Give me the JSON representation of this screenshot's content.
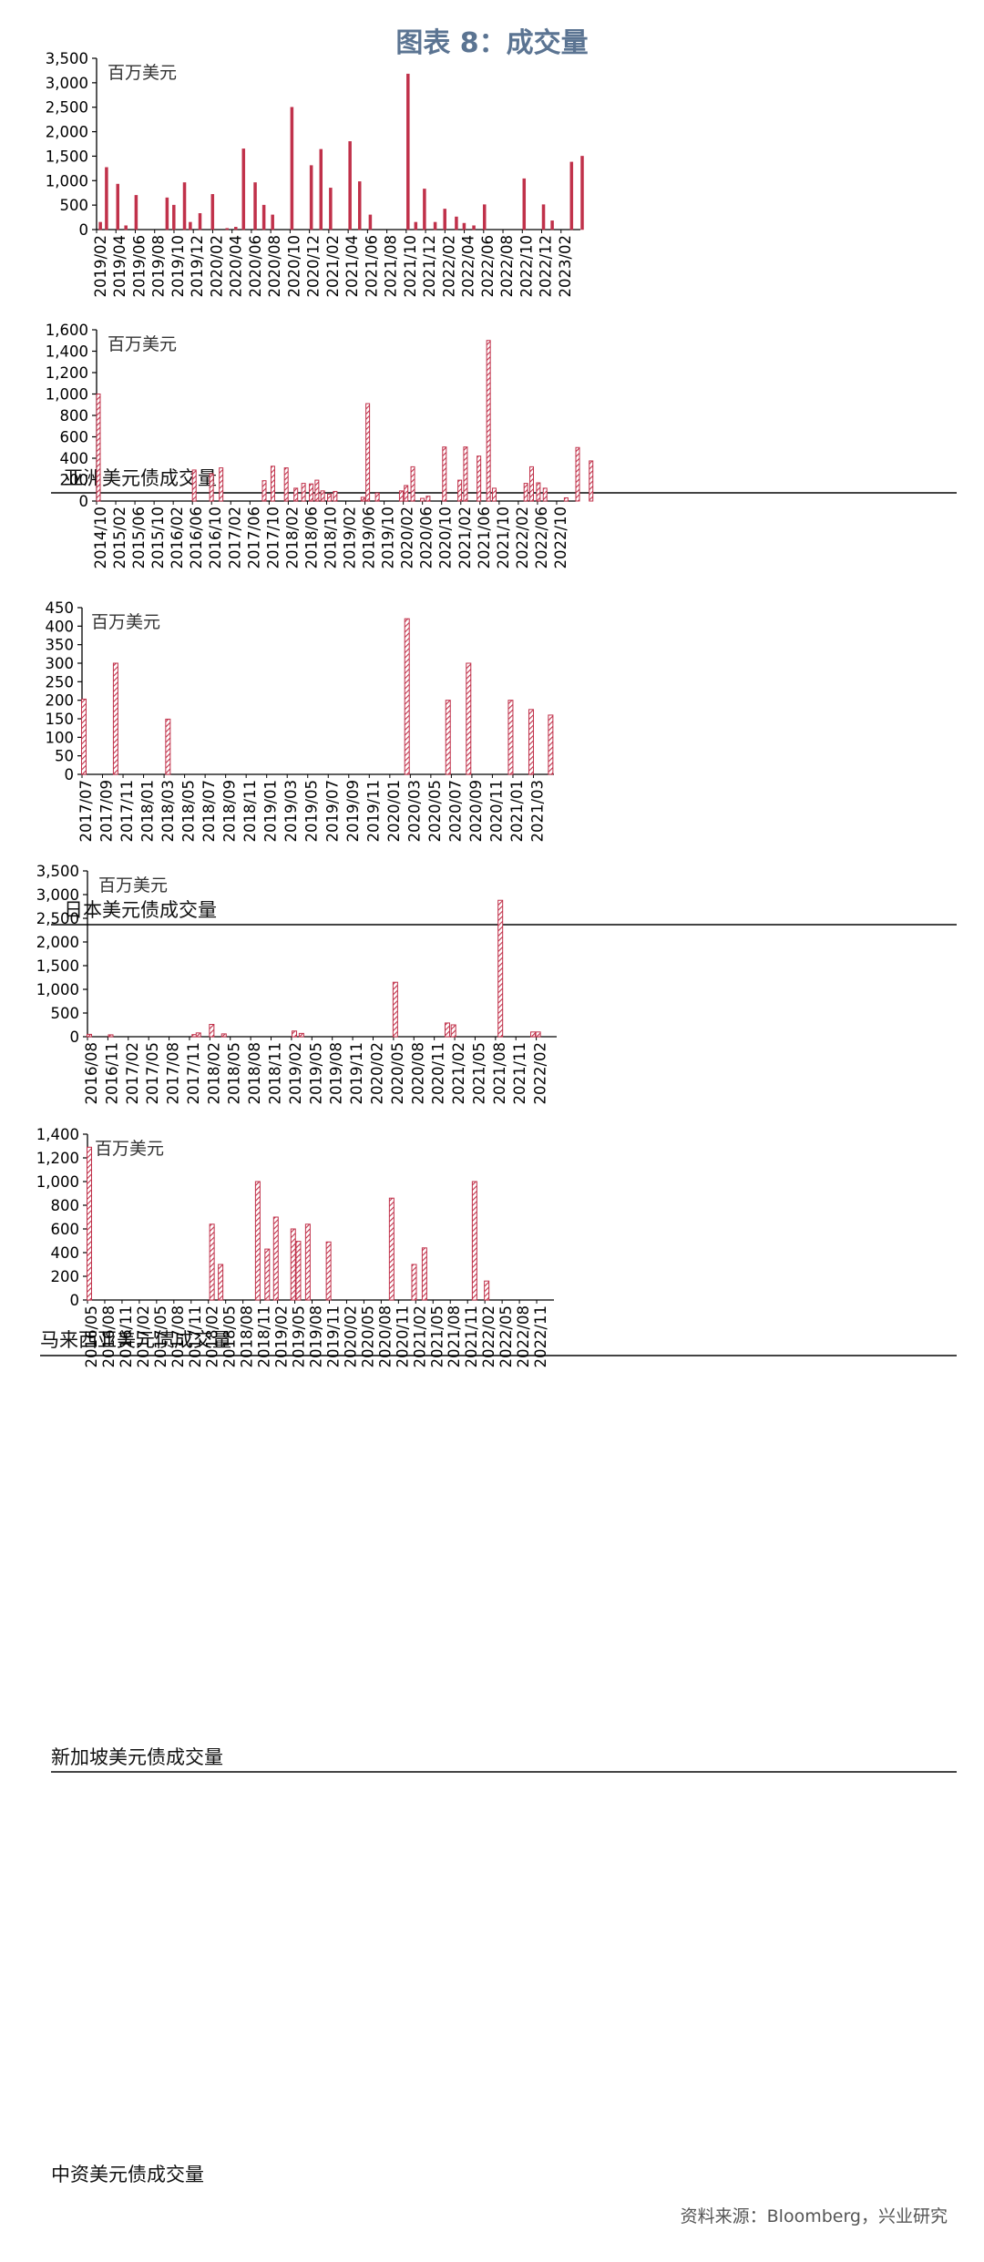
{
  "page_title": "图表 8：成交量",
  "source_note": "资料来源：Bloomberg，兴业研究",
  "colors": {
    "bar": "#c0314a",
    "axis": "#000000",
    "title": "#5b7492",
    "rule": "#444444"
  },
  "chart_data": [
    {
      "type": "bar",
      "title": "亚洲美元债成交量",
      "unit_label": "百万美元",
      "ylim": [
        0,
        3500
      ],
      "yticks": [
        0,
        500,
        1000,
        1500,
        2000,
        2500,
        3000,
        3500
      ],
      "ytick_labels": [
        "0",
        "500",
        "1,000",
        "1,500",
        "2,000",
        "2,500",
        "3,000",
        "3,500"
      ],
      "xtick_labels": [
        "2019/02",
        "2019/04",
        "2019/06",
        "2019/08",
        "2019/10",
        "2019/12",
        "2020/02",
        "2020/04",
        "2020/06",
        "2020/08",
        "2020/10",
        "2020/12",
        "2021/02",
        "2021/04",
        "2021/06",
        "2021/08",
        "2021/10",
        "2021/12",
        "2022/02",
        "2022/04",
        "2022/06",
        "2022/08",
        "2022/10",
        "2022/12",
        "2023/02"
      ],
      "hatched": false,
      "points": [
        [
          0.1,
          150
        ],
        [
          0.42,
          1270
        ],
        [
          1.0,
          930
        ],
        [
          1.42,
          80
        ],
        [
          1.95,
          700
        ],
        [
          3.55,
          650
        ],
        [
          3.9,
          500
        ],
        [
          4.45,
          960
        ],
        [
          4.75,
          150
        ],
        [
          5.25,
          330
        ],
        [
          5.9,
          720
        ],
        [
          6.65,
          25
        ],
        [
          7.1,
          50
        ],
        [
          7.5,
          1650
        ],
        [
          8.1,
          960
        ],
        [
          8.55,
          500
        ],
        [
          9.0,
          300
        ],
        [
          10.0,
          2500
        ],
        [
          11.0,
          1310
        ],
        [
          11.5,
          1640
        ],
        [
          12.0,
          850
        ],
        [
          13.0,
          1800
        ],
        [
          13.5,
          980
        ],
        [
          14.05,
          300
        ],
        [
          16.0,
          3180
        ],
        [
          16.4,
          150
        ],
        [
          16.85,
          830
        ],
        [
          17.4,
          150
        ],
        [
          17.9,
          420
        ],
        [
          18.5,
          260
        ],
        [
          18.9,
          130
        ],
        [
          19.4,
          80
        ],
        [
          19.95,
          510
        ],
        [
          22.0,
          1040
        ],
        [
          23.0,
          510
        ],
        [
          23.45,
          180
        ],
        [
          24.45,
          1380
        ],
        [
          25.0,
          1500
        ]
      ]
    },
    {
      "type": "bar",
      "title": "日本美元债成交量",
      "unit_label": "百万美元",
      "ylim": [
        0,
        1600
      ],
      "yticks": [
        0,
        200,
        400,
        600,
        800,
        1000,
        1200,
        1400,
        1600
      ],
      "ytick_labels": [
        "0",
        "200",
        "400",
        "600",
        "800",
        "1,000",
        "1,200",
        "1,400",
        "1,600"
      ],
      "xtick_labels": [
        "2014/10",
        "2015/02",
        "2015/06",
        "2015/10",
        "2016/02",
        "2016/06",
        "2016/10",
        "2017/02",
        "2017/06",
        "2017/10",
        "2018/02",
        "2018/06",
        "2018/10",
        "2019/02",
        "2019/06",
        "2019/10",
        "2020/02",
        "2020/06",
        "2020/10",
        "2021/02",
        "2021/06",
        "2021/10",
        "2022/02",
        "2022/06",
        "2022/10"
      ],
      "hatched": true,
      "points": [
        [
          0.0,
          1000
        ],
        [
          5.0,
          290
        ],
        [
          5.9,
          255
        ],
        [
          6.4,
          310
        ],
        [
          8.65,
          190
        ],
        [
          9.1,
          325
        ],
        [
          9.8,
          310
        ],
        [
          10.3,
          120
        ],
        [
          10.7,
          165
        ],
        [
          11.1,
          160
        ],
        [
          11.4,
          195
        ],
        [
          11.7,
          95
        ],
        [
          12.05,
          65
        ],
        [
          12.35,
          90
        ],
        [
          13.8,
          35
        ],
        [
          14.05,
          910
        ],
        [
          14.55,
          75
        ],
        [
          15.8,
          95
        ],
        [
          16.05,
          145
        ],
        [
          16.4,
          320
        ],
        [
          16.9,
          25
        ],
        [
          17.2,
          45
        ],
        [
          18.05,
          505
        ],
        [
          18.85,
          195
        ],
        [
          19.15,
          505
        ],
        [
          19.85,
          420
        ],
        [
          20.35,
          1500
        ],
        [
          20.65,
          120
        ],
        [
          22.3,
          165
        ],
        [
          22.6,
          320
        ],
        [
          22.95,
          170
        ],
        [
          23.3,
          120
        ],
        [
          24.4,
          30
        ],
        [
          25.0,
          500
        ],
        [
          25.7,
          375
        ]
      ]
    },
    {
      "type": "bar",
      "title": "马来西亚美元债成交量",
      "unit_label": "百万美元",
      "ylim": [
        0,
        450
      ],
      "yticks": [
        0,
        50,
        100,
        150,
        200,
        250,
        300,
        350,
        400,
        450
      ],
      "ytick_labels": [
        "0",
        "50",
        "100",
        "150",
        "200",
        "250",
        "300",
        "350",
        "400",
        "450"
      ],
      "xtick_labels": [
        "2017/07",
        "2017/09",
        "2017/11",
        "2018/01",
        "2018/03",
        "2018/05",
        "2018/07",
        "2018/09",
        "2018/11",
        "2019/01",
        "2019/03",
        "2019/05",
        "2019/07",
        "2019/09",
        "2019/11",
        "2020/01",
        "2020/03",
        "2020/05",
        "2020/07",
        "2020/09",
        "2020/11",
        "2021/01",
        "2021/03"
      ],
      "hatched": true,
      "points": [
        [
          0.0,
          203
        ],
        [
          1.55,
          300
        ],
        [
          4.1,
          149
        ],
        [
          15.75,
          420
        ],
        [
          17.75,
          200
        ],
        [
          18.75,
          300
        ],
        [
          20.8,
          200
        ],
        [
          21.8,
          175
        ],
        [
          22.75,
          160
        ]
      ]
    },
    {
      "type": "bar",
      "title": "新加坡美元债成交量",
      "unit_label": "百万美元",
      "ylim": [
        0,
        3500
      ],
      "yticks": [
        0,
        500,
        1000,
        1500,
        2000,
        2500,
        3000,
        3500
      ],
      "ytick_labels": [
        "0",
        "500",
        "1,000",
        "1,500",
        "2,000",
        "2,500",
        "3,000",
        "3,500"
      ],
      "xtick_labels": [
        "2016/08",
        "2016/11",
        "2017/02",
        "2017/05",
        "2017/08",
        "2017/11",
        "2018/02",
        "2018/05",
        "2018/08",
        "2018/11",
        "2019/02",
        "2019/05",
        "2019/08",
        "2019/11",
        "2020/02",
        "2020/05",
        "2020/08",
        "2020/11",
        "2021/02",
        "2021/05",
        "2021/08",
        "2021/11",
        "2022/02"
      ],
      "hatched": true,
      "points": [
        [
          0.0,
          50
        ],
        [
          1.05,
          40
        ],
        [
          5.15,
          45
        ],
        [
          5.35,
          80
        ],
        [
          6.0,
          260
        ],
        [
          6.6,
          60
        ],
        [
          10.05,
          120
        ],
        [
          10.4,
          70
        ],
        [
          15.0,
          1150
        ],
        [
          17.55,
          290
        ],
        [
          17.85,
          250
        ],
        [
          20.15,
          2880
        ],
        [
          21.75,
          100
        ],
        [
          22.0,
          100
        ]
      ]
    },
    {
      "type": "bar",
      "title": "中资美元债成交量",
      "unit_label": "百万美元",
      "ylim": [
        0,
        1400
      ],
      "yticks": [
        0,
        200,
        400,
        600,
        800,
        1000,
        1200,
        1400
      ],
      "ytick_labels": [
        "0",
        "200",
        "400",
        "600",
        "800",
        "1,000",
        "1,200",
        "1,400"
      ],
      "xtick_labels": [
        "2016/05",
        "2016/08",
        "2016/11",
        "2017/02",
        "2017/05",
        "2017/08",
        "2017/11",
        "2018/02",
        "2018/05",
        "2018/08",
        "2018/11",
        "2019/02",
        "2019/05",
        "2019/08",
        "2019/11",
        "2020/02",
        "2020/05",
        "2020/08",
        "2020/11",
        "2021/02",
        "2021/05",
        "2021/08",
        "2021/11",
        "2022/02",
        "2022/05",
        "2022/08",
        "2022/11"
      ],
      "hatched": true,
      "points": [
        [
          0.0,
          1290
        ],
        [
          7.1,
          640
        ],
        [
          7.6,
          300
        ],
        [
          9.75,
          1000
        ],
        [
          10.3,
          430
        ],
        [
          10.8,
          700
        ],
        [
          11.8,
          600
        ],
        [
          12.1,
          495
        ],
        [
          12.65,
          640
        ],
        [
          13.85,
          490
        ],
        [
          17.5,
          860
        ],
        [
          18.8,
          300
        ],
        [
          19.4,
          440
        ],
        [
          22.3,
          1000
        ],
        [
          23.0,
          160
        ]
      ]
    }
  ]
}
